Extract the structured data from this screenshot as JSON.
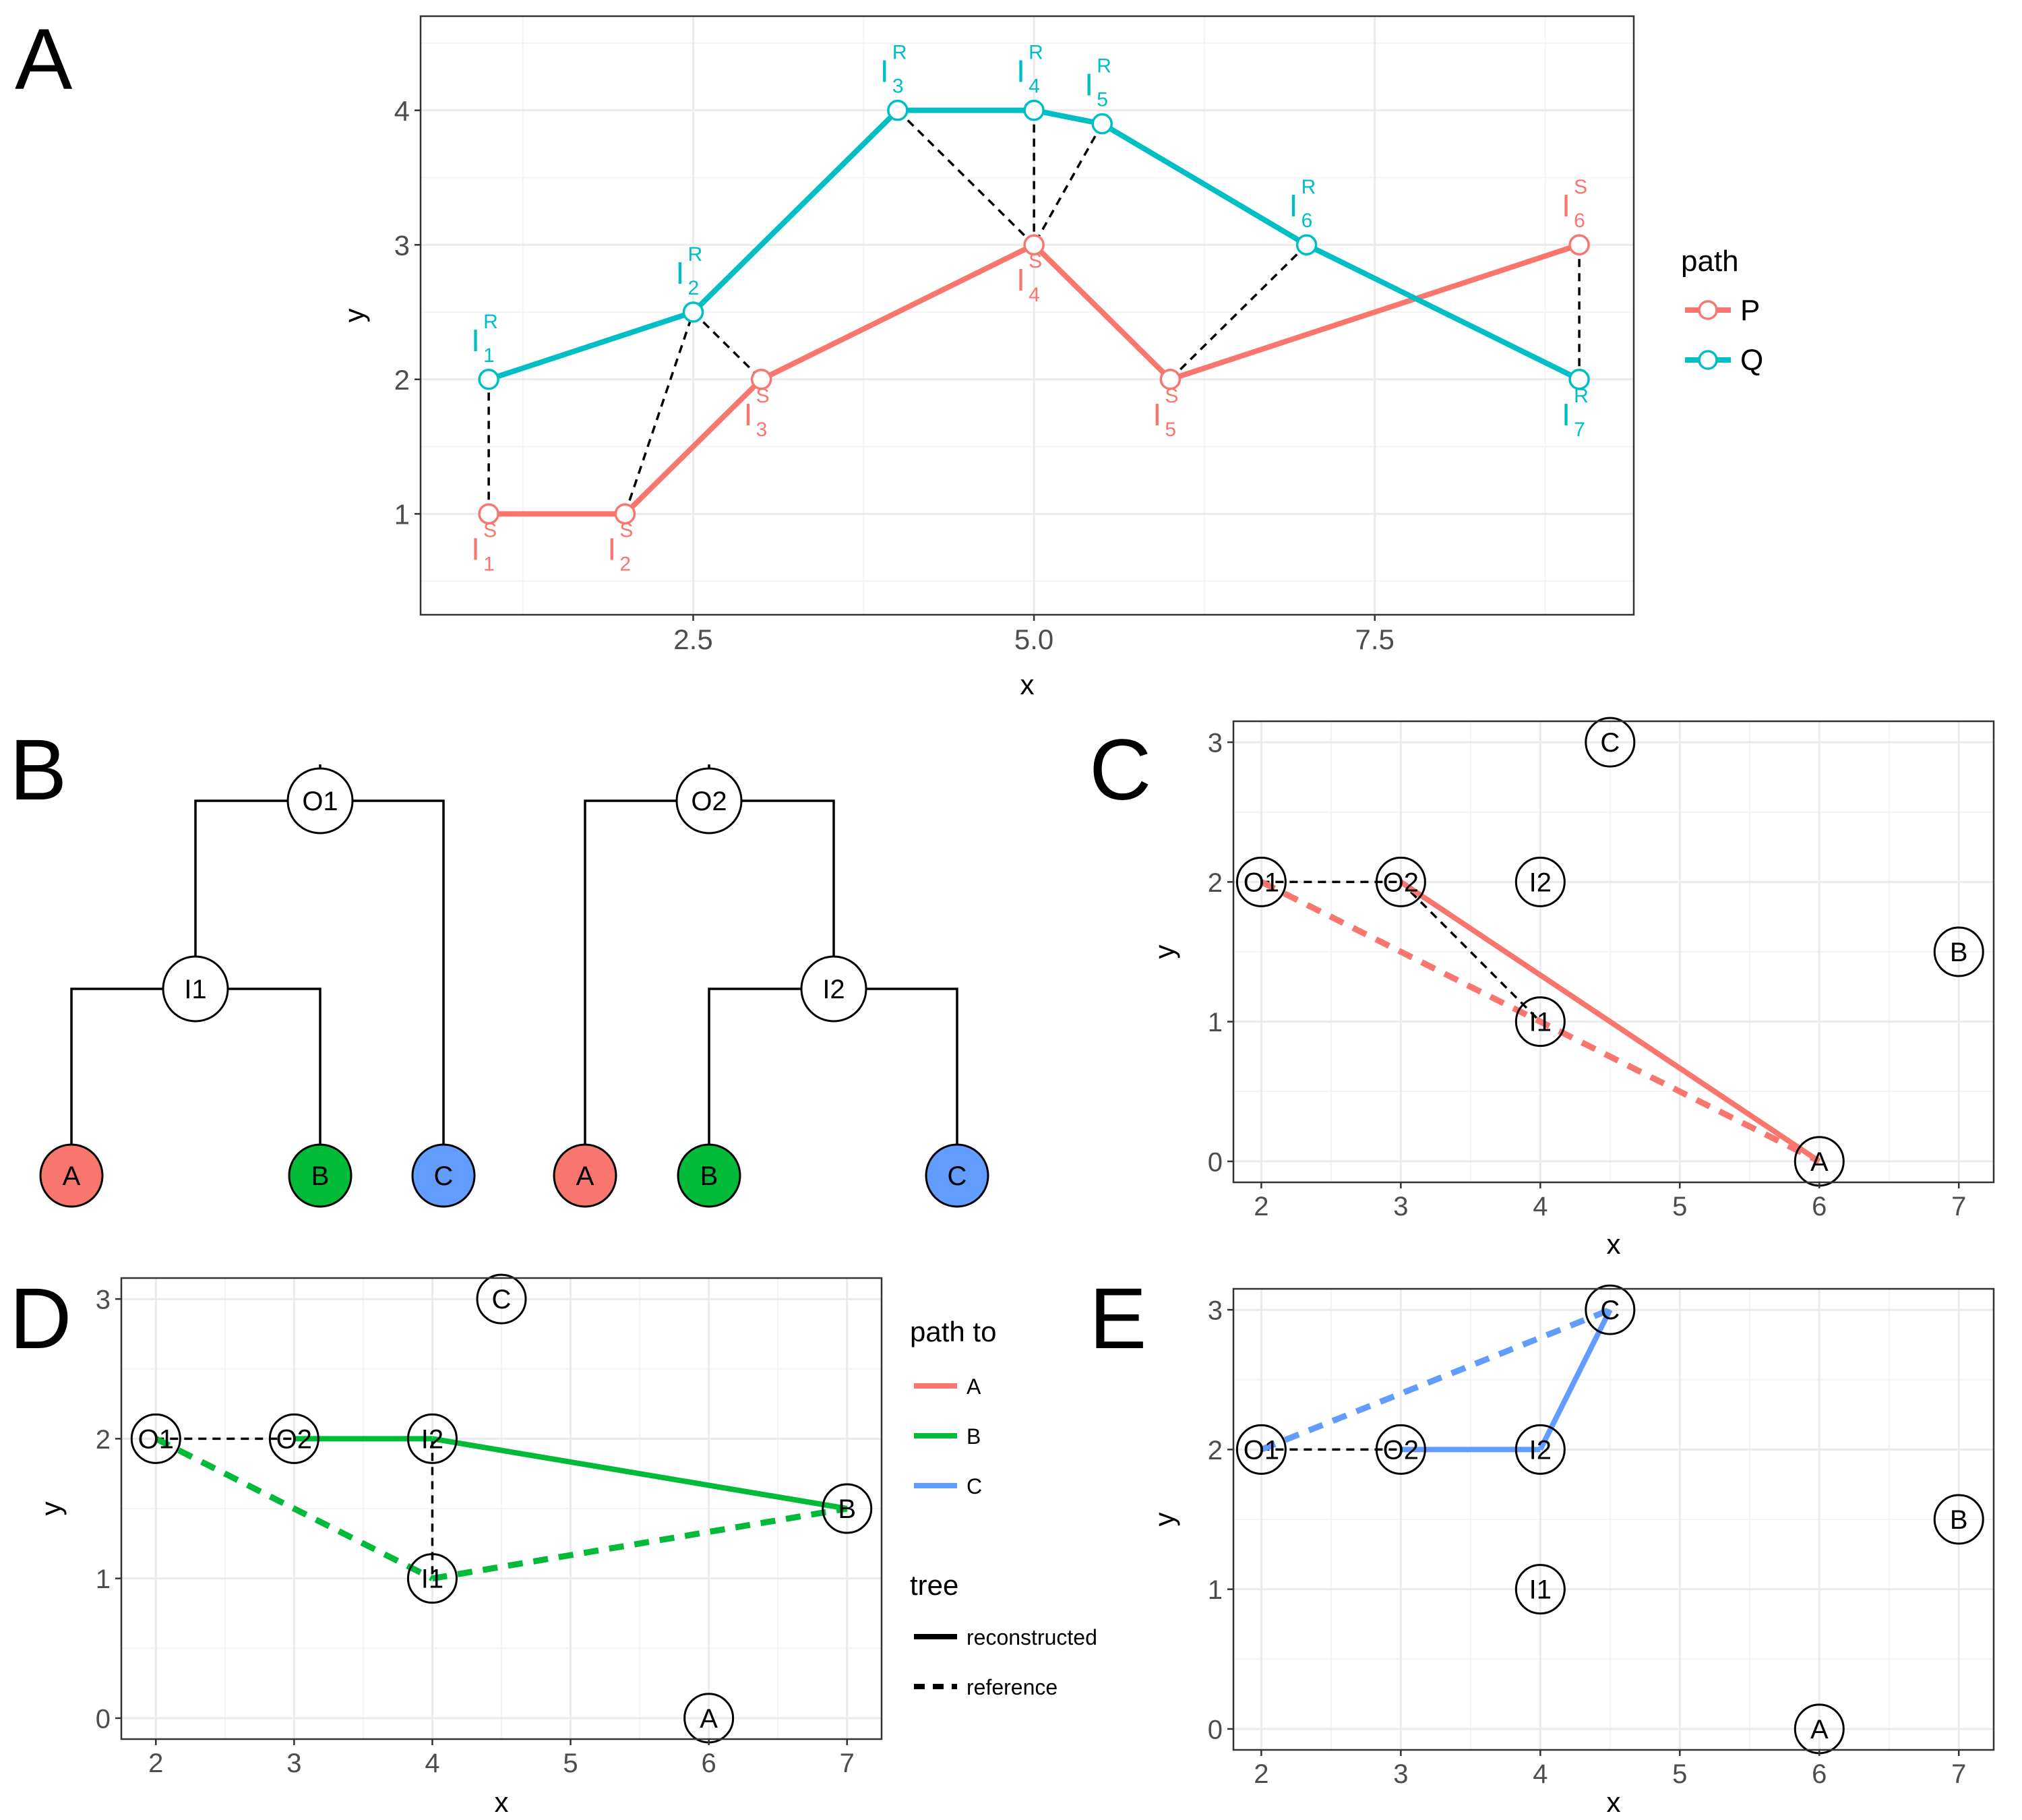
{
  "panel_letters": [
    "A",
    "B",
    "C",
    "D",
    "E"
  ],
  "colors": {
    "P": "#f8766d",
    "Q": "#00bfc4",
    "A": "#f8766d",
    "B": "#00ba38",
    "C": "#619cff",
    "grid_major": "#ebebeb",
    "grid_minor": "#f4f4f4"
  },
  "chart_data": [
    {
      "panel": "A",
      "type": "line",
      "xlabel": "x",
      "ylabel": "y",
      "xlim": [
        0.5,
        9.4
      ],
      "ylim": [
        0.25,
        4.7
      ],
      "xticks": [
        2.5,
        5.0,
        7.5
      ],
      "xtick_labels": [
        "2.5",
        "5.0",
        "7.5"
      ],
      "yticks": [
        1,
        2,
        3,
        4
      ],
      "ytick_labels": [
        "1",
        "2",
        "3",
        "4"
      ],
      "legend": {
        "title": "path",
        "position": "right",
        "entries": [
          {
            "label": "P",
            "color": "#f8766d"
          },
          {
            "label": "Q",
            "color": "#00bfc4"
          }
        ]
      },
      "series": [
        {
          "name": "P",
          "color": "#f8766d",
          "points": [
            {
              "x": 1,
              "y": 1,
              "label": "I",
              "sup": "S",
              "sub": "1",
              "pos": "below"
            },
            {
              "x": 2,
              "y": 1,
              "label": "I",
              "sup": "S",
              "sub": "2",
              "pos": "below"
            },
            {
              "x": 3,
              "y": 2,
              "label": "I",
              "sup": "S",
              "sub": "3",
              "pos": "below"
            },
            {
              "x": 5,
              "y": 3,
              "label": "I",
              "sup": "S",
              "sub": "4",
              "pos": "below"
            },
            {
              "x": 6,
              "y": 2,
              "label": "I",
              "sup": "S",
              "sub": "5",
              "pos": "below"
            },
            {
              "x": 9,
              "y": 3,
              "label": "I",
              "sup": "S",
              "sub": "6",
              "pos": "above"
            }
          ]
        },
        {
          "name": "Q",
          "color": "#00bfc4",
          "points": [
            {
              "x": 1,
              "y": 2,
              "label": "I",
              "sup": "R",
              "sub": "1",
              "pos": "above"
            },
            {
              "x": 2.5,
              "y": 2.5,
              "label": "I",
              "sup": "R",
              "sub": "2",
              "pos": "above"
            },
            {
              "x": 4,
              "y": 4,
              "label": "I",
              "sup": "R",
              "sub": "3",
              "pos": "above"
            },
            {
              "x": 5,
              "y": 4,
              "label": "I",
              "sup": "R",
              "sub": "4",
              "pos": "above"
            },
            {
              "x": 5.5,
              "y": 3.9,
              "label": "I",
              "sup": "R",
              "sub": "5",
              "pos": "above"
            },
            {
              "x": 7,
              "y": 3,
              "label": "I",
              "sup": "R",
              "sub": "6",
              "pos": "above"
            },
            {
              "x": 9,
              "y": 2,
              "label": "I",
              "sup": "R",
              "sub": "7",
              "pos": "below"
            }
          ]
        }
      ],
      "matches": [
        [
          [
            1,
            1
          ],
          [
            1,
            2
          ]
        ],
        [
          [
            2,
            1
          ],
          [
            2.5,
            2.5
          ]
        ],
        [
          [
            2.5,
            2.5
          ],
          [
            3,
            2
          ]
        ],
        [
          [
            4,
            4
          ],
          [
            5,
            3
          ]
        ],
        [
          [
            5,
            4
          ],
          [
            5,
            3
          ]
        ],
        [
          [
            5.5,
            3.9
          ],
          [
            5,
            3
          ]
        ],
        [
          [
            6,
            2
          ],
          [
            7,
            3
          ]
        ],
        [
          [
            9,
            3
          ],
          [
            9,
            2
          ]
        ]
      ]
    },
    {
      "panel": "C",
      "type": "scatter",
      "xlabel": "x",
      "ylabel": "y",
      "xlim": [
        1.8,
        7.25
      ],
      "ylim": [
        -0.15,
        3.15
      ],
      "xticks": [
        2,
        3,
        4,
        5,
        6,
        7
      ],
      "xtick_labels": [
        "2",
        "3",
        "4",
        "5",
        "6",
        "7"
      ],
      "yticks": [
        0,
        1,
        2,
        3
      ],
      "ytick_labels": [
        "0",
        "1",
        "2",
        "3"
      ],
      "nodes": [
        {
          "name": "O1",
          "x": 2,
          "y": 2
        },
        {
          "name": "O2",
          "x": 3,
          "y": 2
        },
        {
          "name": "I2",
          "x": 4,
          "y": 2
        },
        {
          "name": "I1",
          "x": 4,
          "y": 1
        },
        {
          "name": "C",
          "x": 4.5,
          "y": 3
        },
        {
          "name": "B",
          "x": 7,
          "y": 1.5
        },
        {
          "name": "A",
          "x": 6,
          "y": 0
        }
      ],
      "segments": [
        {
          "from": [
            2,
            2
          ],
          "to": [
            3,
            2
          ],
          "color": "#000000",
          "style": "dash-thin"
        },
        {
          "from": [
            3,
            2
          ],
          "to": [
            4,
            1
          ],
          "color": "#000000",
          "style": "dash-thin"
        },
        {
          "from": [
            3,
            2
          ],
          "to": [
            6,
            0
          ],
          "color": "#f8766d",
          "style": "solid"
        },
        {
          "from": [
            2,
            2
          ],
          "to": [
            6,
            0
          ],
          "color": "#f8766d",
          "style": "dash"
        }
      ]
    },
    {
      "panel": "D",
      "type": "scatter",
      "xlabel": "x",
      "ylabel": "y",
      "xlim": [
        1.75,
        7.25
      ],
      "ylim": [
        -0.15,
        3.15
      ],
      "xticks": [
        2,
        3,
        4,
        5,
        6,
        7
      ],
      "xtick_labels": [
        "2",
        "3",
        "4",
        "5",
        "6",
        "7"
      ],
      "yticks": [
        0,
        1,
        2,
        3
      ],
      "ytick_labels": [
        "0",
        "1",
        "2",
        "3"
      ],
      "legend": {
        "title": "path to",
        "entries": [
          {
            "label": "A",
            "color": "#f8766d"
          },
          {
            "label": "B",
            "color": "#00ba38"
          },
          {
            "label": "C",
            "color": "#619cff"
          }
        ],
        "title2": "tree",
        "entries2": [
          {
            "label": "reconstructed",
            "style": "solid"
          },
          {
            "label": "reference",
            "style": "dash"
          }
        ]
      },
      "nodes": [
        {
          "name": "O1",
          "x": 2,
          "y": 2
        },
        {
          "name": "O2",
          "x": 3,
          "y": 2
        },
        {
          "name": "I2",
          "x": 4,
          "y": 2
        },
        {
          "name": "I1",
          "x": 4,
          "y": 1
        },
        {
          "name": "C",
          "x": 4.5,
          "y": 3
        },
        {
          "name": "B",
          "x": 7,
          "y": 1.5
        },
        {
          "name": "A",
          "x": 6,
          "y": 0
        }
      ],
      "segments": [
        {
          "from": [
            2,
            2
          ],
          "to": [
            3,
            2
          ],
          "color": "#000000",
          "style": "dash-thin"
        },
        {
          "from": [
            4,
            2
          ],
          "to": [
            4,
            1
          ],
          "color": "#000000",
          "style": "dash-thin"
        },
        {
          "from": [
            3,
            2
          ],
          "to": [
            4,
            2
          ],
          "color": "#00ba38",
          "style": "solid"
        },
        {
          "from": [
            4,
            2
          ],
          "to": [
            7,
            1.5
          ],
          "color": "#00ba38",
          "style": "solid"
        },
        {
          "from": [
            2,
            2
          ],
          "to": [
            4,
            1
          ],
          "color": "#00ba38",
          "style": "dash"
        },
        {
          "from": [
            4,
            1
          ],
          "to": [
            7,
            1.5
          ],
          "color": "#00ba38",
          "style": "dash"
        }
      ]
    },
    {
      "panel": "E",
      "type": "scatter",
      "xlabel": "x",
      "ylabel": "y",
      "xlim": [
        1.8,
        7.25
      ],
      "ylim": [
        -0.15,
        3.15
      ],
      "xticks": [
        2,
        3,
        4,
        5,
        6,
        7
      ],
      "xtick_labels": [
        "2",
        "3",
        "4",
        "5",
        "6",
        "7"
      ],
      "yticks": [
        0,
        1,
        2,
        3
      ],
      "ytick_labels": [
        "0",
        "1",
        "2",
        "3"
      ],
      "nodes": [
        {
          "name": "O1",
          "x": 2,
          "y": 2
        },
        {
          "name": "O2",
          "x": 3,
          "y": 2
        },
        {
          "name": "I2",
          "x": 4,
          "y": 2
        },
        {
          "name": "I1",
          "x": 4,
          "y": 1
        },
        {
          "name": "C",
          "x": 4.5,
          "y": 3
        },
        {
          "name": "B",
          "x": 7,
          "y": 1.5
        },
        {
          "name": "A",
          "x": 6,
          "y": 0
        }
      ],
      "segments": [
        {
          "from": [
            2,
            2
          ],
          "to": [
            3,
            2
          ],
          "color": "#000000",
          "style": "dash-thin"
        },
        {
          "from": [
            4,
            2
          ],
          "to": [
            4.5,
            3
          ],
          "color": "#000000",
          "style": "dash-thin"
        },
        {
          "from": [
            3,
            2
          ],
          "to": [
            4,
            2
          ],
          "color": "#619cff",
          "style": "solid"
        },
        {
          "from": [
            4,
            2
          ],
          "to": [
            4.5,
            3
          ],
          "color": "#619cff",
          "style": "solid"
        },
        {
          "from": [
            2,
            2
          ],
          "to": [
            4.5,
            3
          ],
          "color": "#619cff",
          "style": "dash"
        }
      ]
    }
  ],
  "trees": [
    {
      "name": "reconstructed",
      "root": "O1",
      "internal": [
        "O1",
        "I1"
      ],
      "edges": [
        [
          "O1",
          "I1"
        ],
        [
          "O1",
          "C"
        ],
        [
          "I1",
          "A"
        ],
        [
          "I1",
          "B"
        ]
      ],
      "leaves": [
        {
          "label": "A",
          "color": "#f8766d"
        },
        {
          "label": "B",
          "color": "#00ba38"
        },
        {
          "label": "C",
          "color": "#619cff"
        }
      ]
    },
    {
      "name": "reference",
      "root": "O2",
      "internal": [
        "O2",
        "I2"
      ],
      "edges": [
        [
          "O2",
          "A"
        ],
        [
          "O2",
          "I2"
        ],
        [
          "I2",
          "B"
        ],
        [
          "I2",
          "C"
        ]
      ],
      "leaves": [
        {
          "label": "A",
          "color": "#f8766d"
        },
        {
          "label": "B",
          "color": "#00ba38"
        },
        {
          "label": "C",
          "color": "#619cff"
        }
      ]
    }
  ]
}
